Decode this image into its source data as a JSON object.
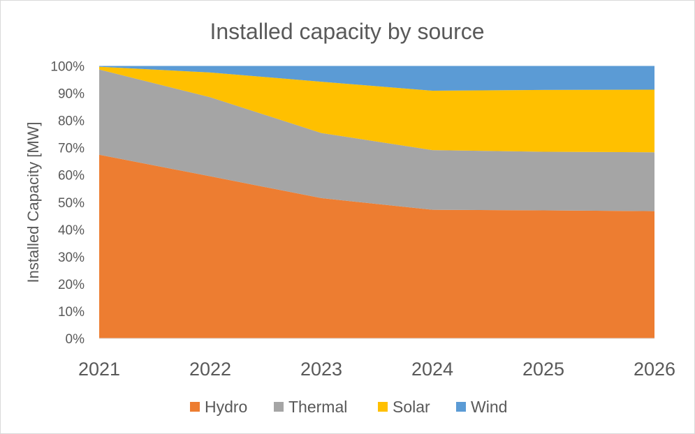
{
  "chart_data": {
    "type": "area",
    "stacking": "percent",
    "title": "Installed capacity by source",
    "xlabel": "",
    "ylabel": "Installed Capacity [MW]",
    "categories": [
      "2021",
      "2022",
      "2023",
      "2024",
      "2025",
      "2026"
    ],
    "ylim": [
      0,
      100
    ],
    "yticks": [
      "0%",
      "10%",
      "20%",
      "30%",
      "40%",
      "50%",
      "60%",
      "70%",
      "80%",
      "90%",
      "100%"
    ],
    "grid": false,
    "legend": "bottom",
    "series": [
      {
        "name": "Hydro",
        "color": "#ED7D31",
        "values": [
          67.4,
          59.5,
          51.5,
          47.2,
          47.0,
          46.7
        ]
      },
      {
        "name": "Thermal",
        "color": "#A5A5A5",
        "values": [
          31.3,
          29.0,
          23.9,
          21.9,
          21.5,
          21.6
        ]
      },
      {
        "name": "Solar",
        "color": "#FFC000",
        "values": [
          1.0,
          9.1,
          18.8,
          21.8,
          22.7,
          23.0
        ]
      },
      {
        "name": "Wind",
        "color": "#5B9BD5",
        "values": [
          0.3,
          2.4,
          5.8,
          9.1,
          8.8,
          8.7
        ]
      }
    ]
  }
}
